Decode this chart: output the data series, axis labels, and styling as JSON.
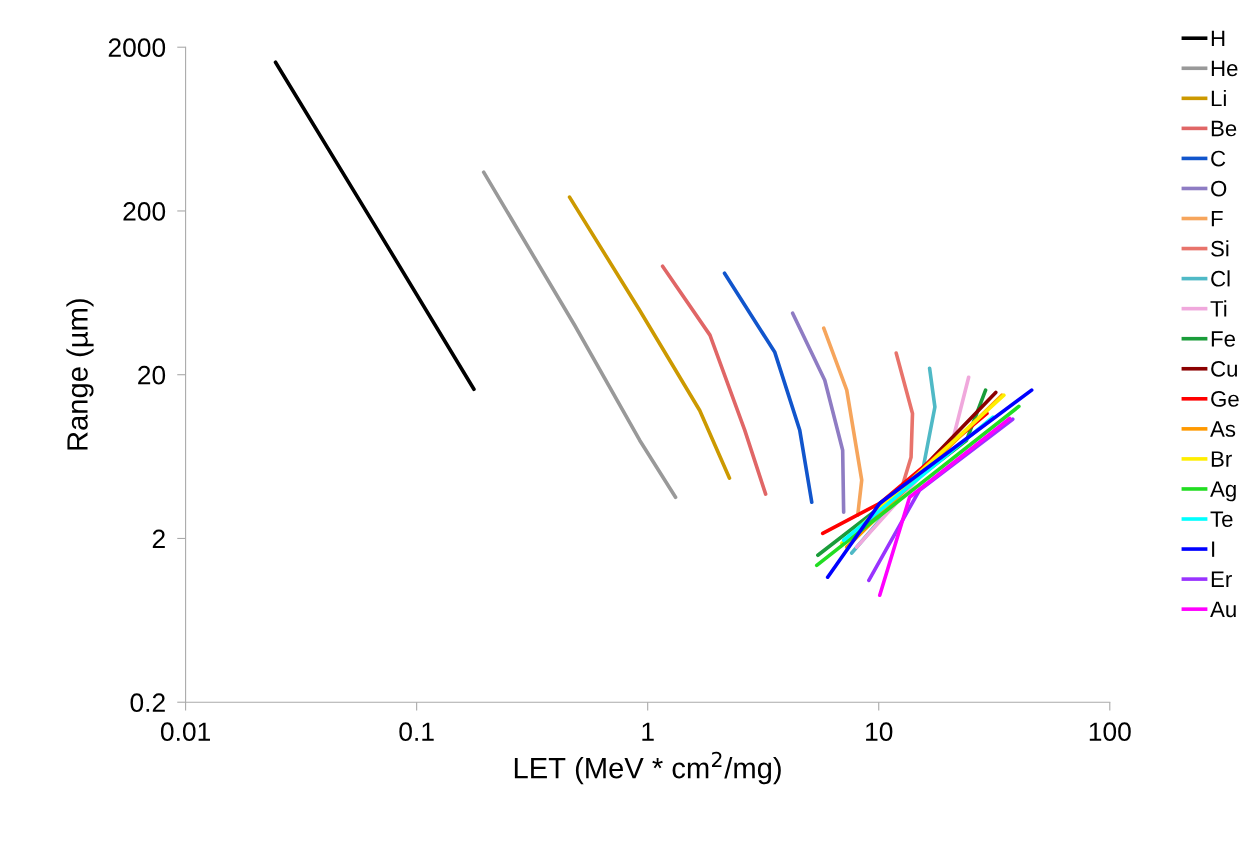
{
  "chart_data": {
    "type": "line",
    "xlabel": "LET (MeV * cm$^{2}$/mg)",
    "ylabel": "Range (µm)",
    "log": "xy",
    "xlim": [
      0.01,
      100
    ],
    "xticks": [
      0.01,
      0.1,
      1,
      10,
      100
    ],
    "ylim": [
      0.2,
      2000
    ],
    "yticks": [
      0.2,
      2,
      20,
      200,
      2000
    ],
    "grid": false,
    "legend": "right",
    "marker": "none",
    "line_style": "solid",
    "series": [
      {
        "name": "H",
        "color": "#000000",
        "x": [
          0.0245,
          0.0658,
          0.177
        ],
        "values": [
          1620,
          164,
          16.3
        ]
      },
      {
        "name": "He",
        "color": "#999999",
        "x": [
          0.195,
          0.483,
          0.923,
          1.32
        ],
        "values": [
          345,
          40.1,
          7.96,
          3.57
        ]
      },
      {
        "name": "Li",
        "color": "#cc9900",
        "x": [
          0.459,
          0.923,
          1.68,
          2.26
        ],
        "values": [
          243,
          49.5,
          12.1,
          4.67
        ]
      },
      {
        "name": "Be",
        "color": "#e06666",
        "x": [
          1.16,
          1.86,
          2.63,
          3.24
        ],
        "values": [
          92,
          34.9,
          9.17,
          3.73
        ]
      },
      {
        "name": "C",
        "color": "#1155cc",
        "x": [
          2.15,
          3.55,
          4.55,
          5.13
        ],
        "values": [
          83.3,
          27.4,
          9.17,
          3.33
        ]
      },
      {
        "name": "O",
        "color": "#8e7cc3",
        "x": [
          4.24,
          5.84,
          6.98,
          7.05
        ],
        "values": [
          47.5,
          18.5,
          6.92,
          2.89
        ]
      },
      {
        "name": "F",
        "color": "#f6a55c",
        "x": [
          5.78,
          7.27,
          8.44,
          8.11
        ],
        "values": [
          38.5,
          16.1,
          4.54,
          2.77
        ]
      },
      {
        "name": "Si",
        "color": "#e8736b",
        "x": [
          11.9,
          14.0,
          13.8,
          12.6
        ],
        "values": [
          27.1,
          11.6,
          6.27,
          4.11
        ]
      },
      {
        "name": "Cl",
        "color": "#4fb9c6",
        "x": [
          16.6,
          17.5,
          15.5,
          7.64
        ],
        "values": [
          21.9,
          12.7,
          5.22,
          1.63
        ]
      },
      {
        "name": "Ti",
        "color": "#f0a8dc",
        "x": [
          24.5,
          20.9,
          8.03
        ],
        "values": [
          19.3,
          7.96,
          1.77
        ]
      },
      {
        "name": "Fe",
        "color": "#1a9c3a",
        "x": [
          29.0,
          24.0,
          5.45
        ],
        "values": [
          16.1,
          7.96,
          1.58
        ]
      },
      {
        "name": "Cu",
        "color": "#8b0000",
        "x": [
          32.1,
          8.53
        ],
        "values": [
          15.6,
          2.25
        ]
      },
      {
        "name": "Ge",
        "color": "#ff0000",
        "x": [
          5.72,
          10.1,
          29.4
        ],
        "values": [
          2.15,
          3.28,
          11.6
        ]
      },
      {
        "name": "As",
        "color": "#ff9900",
        "x": [
          7.27,
          34.1
        ],
        "values": [
          1.77,
          15.0
        ]
      },
      {
        "name": "Br",
        "color": "#ffee00",
        "x": [
          6.92,
          34.8
        ],
        "values": [
          1.87,
          15.0
        ]
      },
      {
        "name": "Ag",
        "color": "#22dd22",
        "x": [
          5.39,
          40.4
        ],
        "values": [
          1.37,
          12.8
        ]
      },
      {
        "name": "Te",
        "color": "#00ffff",
        "x": [
          7.05,
          31.2
        ],
        "values": [
          1.95,
          11.0
        ]
      },
      {
        "name": "I",
        "color": "#0000ff",
        "x": [
          6.01,
          10.1,
          45.9
        ],
        "values": [
          1.16,
          3.28,
          16.1
        ]
      },
      {
        "name": "Er",
        "color": "#9933ff",
        "x": [
          9.06,
          15.0,
          38.0
        ],
        "values": [
          1.11,
          3.94,
          10.7
        ]
      },
      {
        "name": "Au",
        "color": "#ff00ff",
        "x": [
          10.1,
          13.6,
          36.9
        ],
        "values": [
          0.9,
          3.57,
          10.8
        ]
      }
    ]
  }
}
